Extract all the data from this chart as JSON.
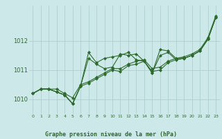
{
  "background_color": "#cce8e8",
  "grid_color": "#aacccc",
  "line_color": "#2d6a2d",
  "marker_color": "#2d6a2d",
  "xlabel": "Graphe pression niveau de la mer (hPa)",
  "xlim": [
    -0.5,
    23.5
  ],
  "ylim": [
    1009.5,
    1013.2
  ],
  "yticks": [
    1010,
    1011,
    1012
  ],
  "xticks": [
    0,
    1,
    2,
    3,
    4,
    5,
    6,
    7,
    8,
    9,
    10,
    11,
    12,
    13,
    14,
    15,
    16,
    17,
    18,
    19,
    20,
    21,
    22,
    23
  ],
  "series": [
    [
      1010.2,
      1010.35,
      1010.35,
      1010.25,
      1010.15,
      1009.85,
      1010.45,
      1010.55,
      1010.7,
      1010.85,
      1011.0,
      1010.95,
      1011.15,
      1011.2,
      1011.3,
      1010.95,
      1011.0,
      1011.25,
      1011.35,
      1011.4,
      1011.5,
      1011.65,
      1012.05,
      1012.8
    ],
    [
      1010.2,
      1010.35,
      1010.35,
      1010.25,
      1010.15,
      1009.85,
      1010.45,
      1011.4,
      1011.2,
      1011.05,
      1011.1,
      1011.55,
      1011.5,
      1011.55,
      1011.3,
      1010.9,
      1011.5,
      1011.6,
      1011.35,
      1011.4,
      1011.5,
      1011.65,
      1012.05,
      1012.8
    ],
    [
      1010.2,
      1010.35,
      1010.35,
      1010.25,
      1010.15,
      1009.85,
      1010.45,
      1011.6,
      1011.25,
      1011.4,
      1011.45,
      1011.5,
      1011.6,
      1011.35,
      1011.3,
      1010.9,
      1011.7,
      1011.65,
      1011.4,
      1011.4,
      1011.5,
      1011.65,
      1012.05,
      1012.8
    ],
    [
      1010.2,
      1010.35,
      1010.35,
      1010.35,
      1010.2,
      1010.05,
      1010.5,
      1010.6,
      1010.75,
      1010.9,
      1011.05,
      1011.05,
      1011.2,
      1011.3,
      1011.35,
      1011.05,
      1011.1,
      1011.3,
      1011.4,
      1011.45,
      1011.55,
      1011.7,
      1012.1,
      1012.85
    ]
  ]
}
